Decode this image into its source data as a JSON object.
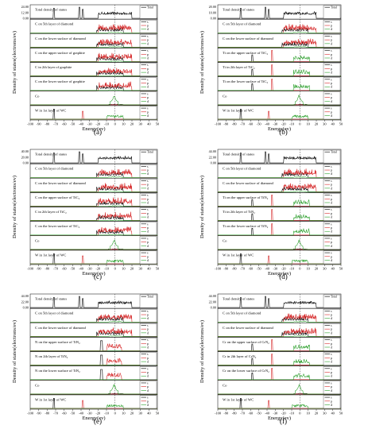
{
  "figure": {
    "panels": [
      {
        "label": "(a)",
        "ylabel": "Density of states(electrons/ev)",
        "xlabel": "Energy(ev)",
        "legend": [
          "Total",
          "s",
          "p",
          "d"
        ],
        "y_ticks_top": [
          "24.00",
          "12.00",
          "0.00"
        ],
        "x_ticks": [
          "-100",
          "-90",
          "-80",
          "-70",
          "-60",
          "-50",
          "-40",
          "-30",
          "-20",
          "-10",
          "0",
          "10",
          "20",
          "30",
          "40",
          "50"
        ],
        "subplots": [
          {
            "label": "Total density of states",
            "kind": "total"
          },
          {
            "label": "C on 5th layer of diamond",
            "kind": "c"
          },
          {
            "label": "C on the lower surface of diamond",
            "kind": "c"
          },
          {
            "label": "C on the upper surface of graphite",
            "kind": "c"
          },
          {
            "label": "C in 2th layer of graphite",
            "kind": "c"
          },
          {
            "label": "C on the lower surface of graphite",
            "kind": "c"
          },
          {
            "label": "Co",
            "kind": "co"
          },
          {
            "label": "W in 1st layer of WC",
            "kind": "w"
          }
        ]
      },
      {
        "label": "(b)",
        "ylabel": "Density of states(electrons/ev)",
        "xlabel": "Energy(ev)",
        "legend": [
          "Total",
          "s",
          "p",
          "d"
        ],
        "y_ticks_top": [
          "20.00",
          "10.00",
          "0.00"
        ],
        "x_ticks": [
          "-100",
          "-90",
          "-80",
          "-70",
          "-60",
          "-50",
          "-40",
          "-30",
          "-20",
          "-10",
          "0",
          "10",
          "20",
          "30",
          "40",
          "50"
        ],
        "subplots": [
          {
            "label": "Total density of states",
            "kind": "total"
          },
          {
            "label": "C on 5th layer of diamond",
            "kind": "c"
          },
          {
            "label": "C on the lower surface of diamond",
            "kind": "c"
          },
          {
            "label": "Ti on the upper surface of TiC₂",
            "kind": "ti"
          },
          {
            "label": "Ti in 2th layer of TiC₂",
            "kind": "ti"
          },
          {
            "label": "Ti on the lower surface of TiC₂",
            "kind": "ti"
          },
          {
            "label": "Co",
            "kind": "co"
          },
          {
            "label": "W in 1st layer of WC",
            "kind": "w"
          }
        ]
      },
      {
        "label": "(c)",
        "ylabel": "Density of states(electrons/ev)",
        "xlabel": "Energy(ev)",
        "legend": [
          "Total",
          "s",
          "p",
          "d"
        ],
        "y_ticks_top": [
          "40.00",
          "20.00",
          "0.00"
        ],
        "x_ticks": [
          "-100",
          "-90",
          "-80",
          "-70",
          "-60",
          "-50",
          "-40",
          "-30",
          "-20",
          "-10",
          "0",
          "10",
          "20",
          "30",
          "40",
          "50"
        ],
        "subplots": [
          {
            "label": "Total density of states",
            "kind": "total"
          },
          {
            "label": "C on 5th layer of diamond",
            "kind": "c"
          },
          {
            "label": "C on the lower surface of diamond",
            "kind": "c"
          },
          {
            "label": "C on the upper surface of TiC₂",
            "kind": "c"
          },
          {
            "label": "C in 2th layer of TiC₂",
            "kind": "c"
          },
          {
            "label": "C on the lower surface of TiC₂",
            "kind": "c"
          },
          {
            "label": "Co",
            "kind": "co"
          },
          {
            "label": "W in 1st layer of WC",
            "kind": "w"
          }
        ]
      },
      {
        "label": "(d)",
        "ylabel": "Density of states(electrons/ev)",
        "xlabel": "Energy(ev)",
        "legend": [
          "Total",
          "s",
          "p",
          "d"
        ],
        "y_ticks_top": [
          "44.00",
          "22.00",
          "0.00"
        ],
        "x_ticks": [
          "-100",
          "-90",
          "-80",
          "-70",
          "-60",
          "-50",
          "-40",
          "-30",
          "-20",
          "-10",
          "0",
          "10",
          "20",
          "30",
          "40",
          "50"
        ],
        "subplots": [
          {
            "label": "Total density of states",
            "kind": "total"
          },
          {
            "label": "C on 5th layer of diamond",
            "kind": "c"
          },
          {
            "label": "C on the lower surface of diamond",
            "kind": "c"
          },
          {
            "label": "Ti on the upper surface of TiN₂",
            "kind": "ti"
          },
          {
            "label": "Ti in 2th layer of TiN₂",
            "kind": "ti"
          },
          {
            "label": "Ti on the lower surface of TiN₂",
            "kind": "ti"
          },
          {
            "label": "Co",
            "kind": "co"
          },
          {
            "label": "W in 1st layer of WC",
            "kind": "w"
          }
        ]
      },
      {
        "label": "(e)",
        "ylabel": "Density of states(electrons/ev)",
        "xlabel": "Energy(ev)",
        "legend": [
          "Total",
          "s",
          "p",
          "d"
        ],
        "y_ticks_top": [
          "44.00",
          "22.00",
          "0.00"
        ],
        "x_ticks": [
          "-100",
          "-90",
          "-80",
          "-70",
          "-60",
          "-50",
          "-40",
          "-30",
          "-20",
          "-10",
          "0",
          "10",
          "20",
          "30",
          "40",
          "50"
        ],
        "subplots": [
          {
            "label": "Total density of states",
            "kind": "total"
          },
          {
            "label": "C on 5th layer of diamond",
            "kind": "c"
          },
          {
            "label": "C on the lower surface of diamond",
            "kind": "c"
          },
          {
            "label": "N on the upper surface of TiN₂",
            "kind": "n"
          },
          {
            "label": "N on 2th layer of TiN₂",
            "kind": "n"
          },
          {
            "label": "N on the lower surface of TiN₂",
            "kind": "n"
          },
          {
            "label": "Co",
            "kind": "co"
          },
          {
            "label": "W in 1st layer of WC",
            "kind": "w"
          }
        ]
      },
      {
        "label": "(f)",
        "ylabel": "Density of states(electrons/ev)",
        "xlabel": "Energy(ev)",
        "legend": [
          "Total",
          "s",
          "p",
          "d"
        ],
        "y_ticks_top": [
          "44.00",
          "22.00",
          "0.00"
        ],
        "x_ticks": [
          "-100",
          "-90",
          "-80",
          "-70",
          "-60",
          "-50",
          "-40",
          "-30",
          "-20",
          "-10",
          "0",
          "10",
          "20",
          "30",
          "40",
          "50"
        ],
        "subplots": [
          {
            "label": "Total density of states",
            "kind": "total"
          },
          {
            "label": "C on 5th layer of diamond",
            "kind": "c"
          },
          {
            "label": "C on the lower surface of diamond",
            "kind": "c"
          },
          {
            "label": "Cr on the upper surface of CrN₂",
            "kind": "cr"
          },
          {
            "label": "Cr in 2th layer of CrN₂",
            "kind": "cr"
          },
          {
            "label": "Cr on the lower surface of CrN₂",
            "kind": "cr"
          },
          {
            "label": "Co",
            "kind": "co"
          },
          {
            "label": "W in 1st layer of WC",
            "kind": "w"
          }
        ]
      }
    ]
  },
  "chart_data": {
    "type": "line",
    "title": "",
    "xlabel": "Energy(ev)",
    "ylabel": "Density of states(electrons/ev)",
    "xlim": [
      -100,
      50
    ],
    "fermi_level": 0,
    "series_names": [
      "Total",
      "s",
      "p",
      "d"
    ],
    "colors": {
      "Total": "#000000",
      "s": "#000000",
      "p": "#d62728",
      "d": "#2ca02c",
      "fermi": "#333333"
    }
  }
}
